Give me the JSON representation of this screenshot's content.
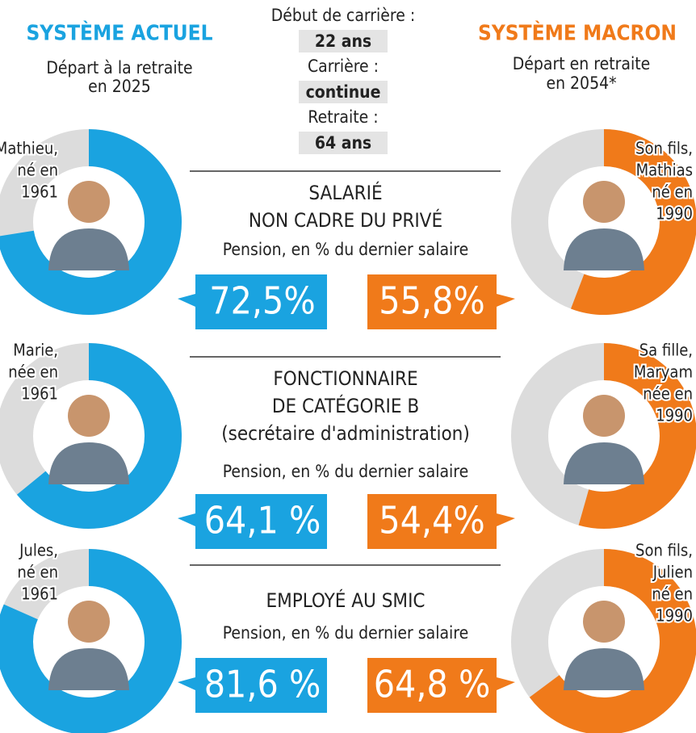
{
  "header": {
    "left_title": "SYSTÈME ACTUEL",
    "left_subtitle": [
      "Départ à la retraite",
      "en 2025"
    ],
    "center": [
      {
        "label": "Début de carrière :",
        "value": "22 ans"
      },
      {
        "label": "Carrière :",
        "value": "continue"
      },
      {
        "label": "Retraite :",
        "value": "64 ans"
      }
    ],
    "right_title": "SYSTÈME MACRON",
    "right_subtitle": [
      "Départ en retraite",
      "en 2054*"
    ]
  },
  "colors": {
    "left": "#1aa3e0",
    "right": "#f07a1a",
    "rest": "#dcdcdc"
  },
  "rows": [
    {
      "title": [
        "SALARIÉ",
        "NON CADRE DU PRIVÉ"
      ],
      "subtitle": "Pension, en % du dernier salaire",
      "left": {
        "person": [
          "Mathieu,",
          "né en",
          "1961"
        ],
        "value": 72.5,
        "value_label": "72,5%"
      },
      "right": {
        "person": [
          "Son fils,",
          "Mathias",
          "né en",
          "1990"
        ],
        "value": 55.8,
        "value_label": "55,8%"
      }
    },
    {
      "title": [
        "FONCTIONNAIRE",
        "DE CATÉGORIE B",
        "(secrétaire d'administration)"
      ],
      "subtitle": "Pension, en % du dernier salaire",
      "left": {
        "person": [
          "Marie,",
          "née en",
          "1961"
        ],
        "value": 64.1,
        "value_label": "64,1 %"
      },
      "right": {
        "person": [
          "Sa fille,",
          "Maryam",
          "née en",
          "1990"
        ],
        "value": 54.4,
        "value_label": "54,4%"
      }
    },
    {
      "title": [
        "EMPLOYÉ AU SMIC"
      ],
      "subtitle": "Pension, en % du dernier salaire",
      "left": {
        "person": [
          "Jules,",
          "né en",
          "1961"
        ],
        "value": 81.6,
        "value_label": "81,6 %"
      },
      "right": {
        "person": [
          "Son fils,",
          "Julien",
          "né en",
          "1990"
        ],
        "value": 64.8,
        "value_label": "64,8 %"
      }
    }
  ]
}
